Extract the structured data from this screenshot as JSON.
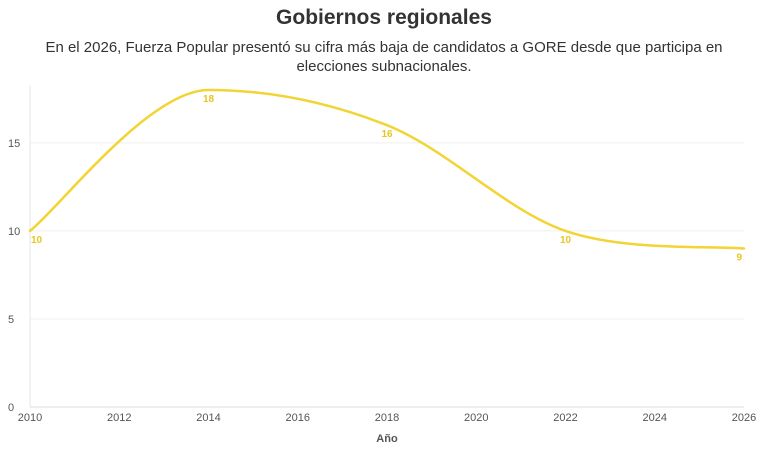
{
  "header": {
    "title": "Gobiernos regionales",
    "subtitle": "En el 2026, Fuerza Popular presentó su cifra más baja de candidatos a GORE desde que participa en elecciones subnacionales."
  },
  "chart_data": {
    "type": "line",
    "title": "Gobiernos regionales",
    "xlabel": "Año",
    "ylabel": "",
    "x": [
      2010,
      2014,
      2018,
      2022,
      2026
    ],
    "series": [
      {
        "values": [
          10,
          18,
          16,
          10,
          9
        ],
        "color": "#f2d434"
      }
    ],
    "data_labels": [
      "10",
      "18",
      "16",
      "10",
      "9"
    ],
    "xlim": [
      2010,
      2026
    ],
    "ylim": [
      0,
      18
    ],
    "xticks": [
      2010,
      2012,
      2014,
      2016,
      2018,
      2020,
      2022,
      2024,
      2026
    ],
    "yticks": [
      0,
      5,
      10,
      15
    ],
    "grid": true,
    "legend": "none"
  }
}
